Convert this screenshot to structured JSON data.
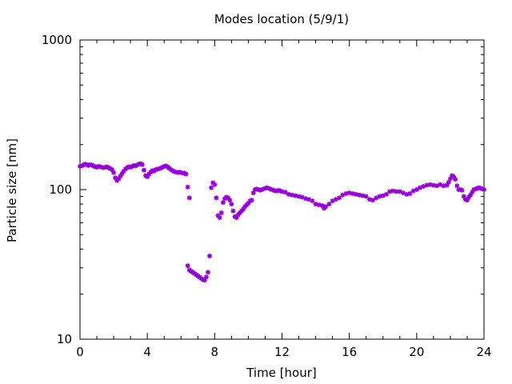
{
  "chart_data": {
    "type": "scatter",
    "title": "Modes location (5/9/1)",
    "xlabel": "Time [hour]",
    "ylabel": "Particle size [nm]",
    "xlim": [
      0,
      24
    ],
    "ylim": [
      10,
      1000
    ],
    "yscale": "log",
    "x_ticks": [
      0,
      4,
      8,
      12,
      16,
      20,
      24
    ],
    "x_tick_labels": [
      "0",
      "4",
      "8",
      "12",
      "16",
      "20",
      "24"
    ],
    "y_ticks": [
      10,
      100,
      1000
    ],
    "y_tick_labels": [
      "10",
      "100",
      "1000"
    ],
    "grid": false,
    "legend": "none",
    "marker_color": "#9400d3",
    "series": [
      {
        "values": [
          [
            0.0,
            143
          ],
          [
            0.1,
            144
          ],
          [
            0.2,
            146
          ],
          [
            0.3,
            148
          ],
          [
            0.4,
            147
          ],
          [
            0.5,
            145
          ],
          [
            0.6,
            147
          ],
          [
            0.7,
            146
          ],
          [
            0.8,
            144
          ],
          [
            0.9,
            142
          ],
          [
            1.0,
            141
          ],
          [
            1.1,
            143
          ],
          [
            1.2,
            142
          ],
          [
            1.3,
            141
          ],
          [
            1.4,
            140
          ],
          [
            1.5,
            141
          ],
          [
            1.6,
            142
          ],
          [
            1.7,
            140
          ],
          [
            1.8,
            138
          ],
          [
            1.9,
            136
          ],
          [
            2.0,
            130
          ],
          [
            2.1,
            120
          ],
          [
            2.2,
            115
          ],
          [
            2.3,
            118
          ],
          [
            2.4,
            123
          ],
          [
            2.5,
            128
          ],
          [
            2.6,
            133
          ],
          [
            2.7,
            137
          ],
          [
            2.8,
            140
          ],
          [
            2.9,
            142
          ],
          [
            3.0,
            141
          ],
          [
            3.1,
            143
          ],
          [
            3.2,
            145
          ],
          [
            3.3,
            144
          ],
          [
            3.4,
            146
          ],
          [
            3.5,
            148
          ],
          [
            3.6,
            149
          ],
          [
            3.7,
            147
          ],
          [
            3.8,
            135
          ],
          [
            3.9,
            124
          ],
          [
            4.0,
            122
          ],
          [
            4.1,
            127
          ],
          [
            4.2,
            131
          ],
          [
            4.3,
            134
          ],
          [
            4.4,
            133
          ],
          [
            4.5,
            136
          ],
          [
            4.6,
            137
          ],
          [
            4.7,
            138
          ],
          [
            4.8,
            139
          ],
          [
            4.9,
            141
          ],
          [
            5.0,
            143
          ],
          [
            5.1,
            144
          ],
          [
            5.2,
            142
          ],
          [
            5.3,
            139
          ],
          [
            5.4,
            136
          ],
          [
            5.5,
            134
          ],
          [
            5.6,
            132
          ],
          [
            5.7,
            131
          ],
          [
            5.8,
            130
          ],
          [
            5.9,
            131
          ],
          [
            6.0,
            130
          ],
          [
            6.1,
            129
          ],
          [
            6.2,
            129
          ],
          [
            6.3,
            127
          ],
          [
            6.4,
            104
          ],
          [
            6.5,
            88
          ],
          [
            6.4,
            31
          ],
          [
            6.5,
            29
          ],
          [
            6.6,
            28.5
          ],
          [
            6.7,
            28
          ],
          [
            6.8,
            27.5
          ],
          [
            6.9,
            27
          ],
          [
            7.0,
            26.5
          ],
          [
            7.1,
            26
          ],
          [
            7.2,
            25.5
          ],
          [
            7.3,
            25
          ],
          [
            7.4,
            24.8
          ],
          [
            7.5,
            26
          ],
          [
            7.6,
            28
          ],
          [
            7.7,
            36
          ],
          [
            7.8,
            103
          ],
          [
            7.9,
            111
          ],
          [
            8.0,
            108
          ],
          [
            8.1,
            88
          ],
          [
            8.2,
            67
          ],
          [
            8.3,
            65
          ],
          [
            8.4,
            70
          ],
          [
            8.5,
            82
          ],
          [
            8.6,
            87
          ],
          [
            8.7,
            89
          ],
          [
            8.8,
            88
          ],
          [
            8.9,
            85
          ],
          [
            9.0,
            80
          ],
          [
            9.1,
            72
          ],
          [
            9.2,
            66
          ],
          [
            9.3,
            65
          ],
          [
            9.4,
            68
          ],
          [
            9.5,
            70
          ],
          [
            9.6,
            72
          ],
          [
            9.7,
            74
          ],
          [
            9.8,
            77
          ],
          [
            9.9,
            79
          ],
          [
            10.0,
            81
          ],
          [
            10.1,
            84
          ],
          [
            10.2,
            85
          ],
          [
            10.3,
            95
          ],
          [
            10.4,
            100
          ],
          [
            10.5,
            101
          ],
          [
            10.6,
            100
          ],
          [
            10.7,
            99
          ],
          [
            10.8,
            100
          ],
          [
            10.9,
            101
          ],
          [
            11.0,
            102
          ],
          [
            11.1,
            103
          ],
          [
            11.2,
            102
          ],
          [
            11.3,
            101
          ],
          [
            11.4,
            100
          ],
          [
            11.5,
            99
          ],
          [
            11.6,
            98
          ],
          [
            11.7,
            98
          ],
          [
            11.8,
            99
          ],
          [
            11.9,
            98
          ],
          [
            12.0,
            97
          ],
          [
            12.2,
            96
          ],
          [
            12.4,
            93
          ],
          [
            12.6,
            92
          ],
          [
            12.8,
            91
          ],
          [
            13.0,
            90
          ],
          [
            13.2,
            89
          ],
          [
            13.4,
            87
          ],
          [
            13.6,
            86
          ],
          [
            13.8,
            84
          ],
          [
            14.0,
            80
          ],
          [
            14.2,
            79
          ],
          [
            14.4,
            78
          ],
          [
            14.5,
            75
          ],
          [
            14.6,
            77
          ],
          [
            14.8,
            80
          ],
          [
            15.0,
            84
          ],
          [
            15.2,
            86
          ],
          [
            15.4,
            88
          ],
          [
            15.6,
            92
          ],
          [
            15.8,
            94
          ],
          [
            16.0,
            95
          ],
          [
            16.2,
            94
          ],
          [
            16.4,
            93
          ],
          [
            16.6,
            92
          ],
          [
            16.8,
            91
          ],
          [
            17.0,
            90
          ],
          [
            17.2,
            86
          ],
          [
            17.4,
            85
          ],
          [
            17.6,
            88
          ],
          [
            17.8,
            90
          ],
          [
            18.0,
            91
          ],
          [
            18.2,
            93
          ],
          [
            18.4,
            97
          ],
          [
            18.6,
            98
          ],
          [
            18.8,
            97
          ],
          [
            19.0,
            97
          ],
          [
            19.2,
            95
          ],
          [
            19.4,
            93
          ],
          [
            19.6,
            94
          ],
          [
            19.8,
            98
          ],
          [
            20.0,
            100
          ],
          [
            20.2,
            103
          ],
          [
            20.4,
            105
          ],
          [
            20.6,
            107
          ],
          [
            20.8,
            108
          ],
          [
            21.0,
            107
          ],
          [
            21.2,
            106
          ],
          [
            21.4,
            108
          ],
          [
            21.6,
            106
          ],
          [
            21.8,
            107
          ],
          [
            21.9,
            112
          ],
          [
            22.0,
            118
          ],
          [
            22.1,
            124
          ],
          [
            22.2,
            122
          ],
          [
            22.3,
            117
          ],
          [
            22.4,
            106
          ],
          [
            22.5,
            100
          ],
          [
            22.6,
            100
          ],
          [
            22.7,
            99
          ],
          [
            22.8,
            90
          ],
          [
            22.9,
            86
          ],
          [
            23.0,
            85
          ],
          [
            23.1,
            89
          ],
          [
            23.2,
            92
          ],
          [
            23.3,
            96
          ],
          [
            23.4,
            100
          ],
          [
            23.5,
            101
          ],
          [
            23.6,
            102
          ],
          [
            23.7,
            103
          ],
          [
            23.8,
            102
          ],
          [
            23.9,
            101
          ],
          [
            24.0,
            100
          ]
        ]
      }
    ]
  }
}
